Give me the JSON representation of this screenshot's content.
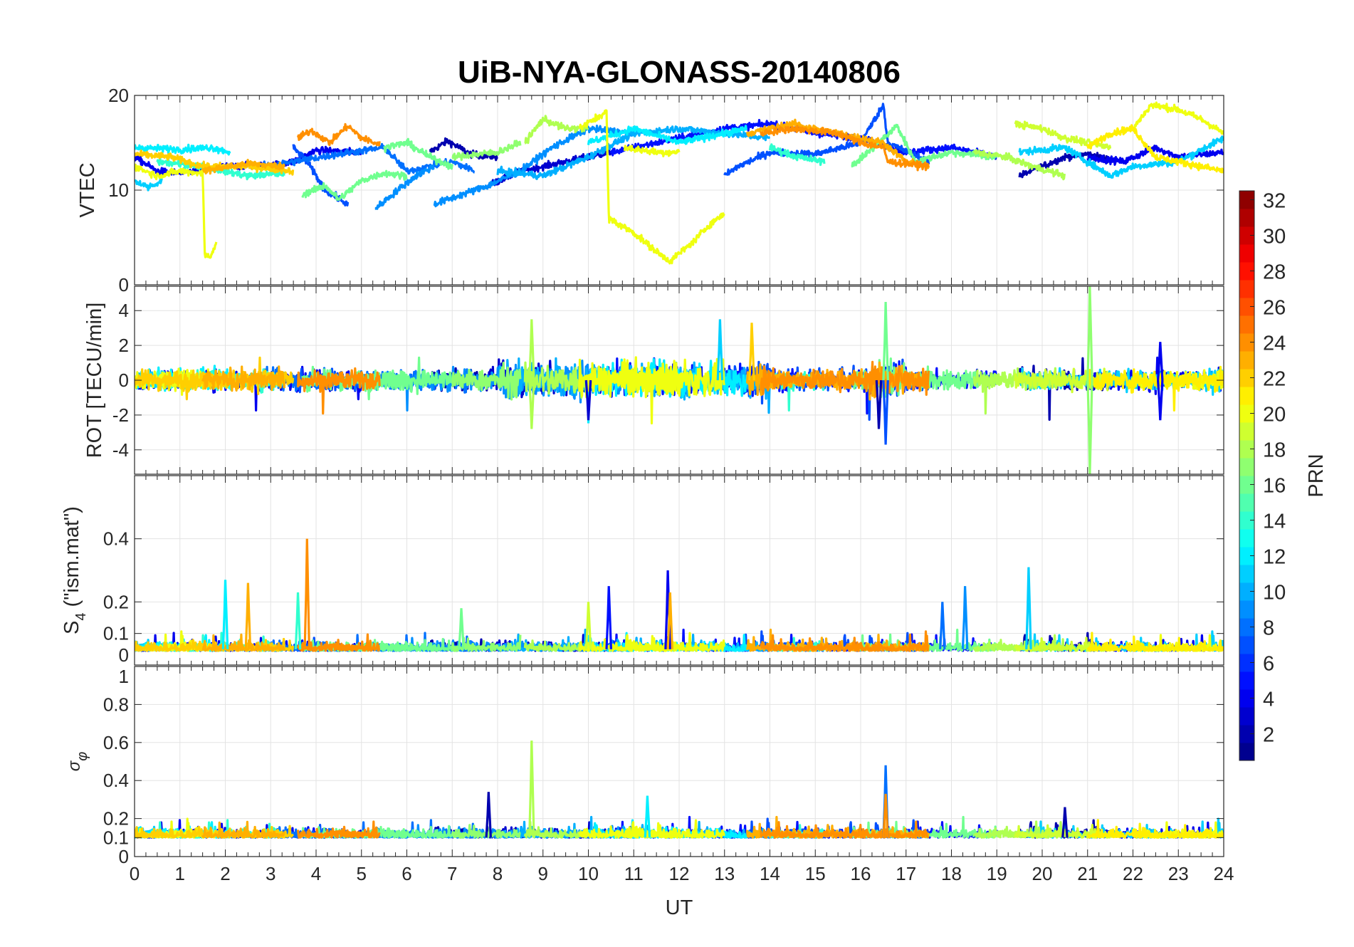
{
  "chart_data": [
    {
      "type": "line",
      "title": "UiB-NYA-GLONASS-20140806",
      "panel": "vtec",
      "ylabel": "VTEC",
      "ylim": [
        0,
        20
      ],
      "yticks": [
        "0",
        "10",
        "20"
      ],
      "yticks_values": [
        0,
        10,
        20
      ],
      "grid": true
    },
    {
      "type": "line",
      "panel": "rot",
      "ylabel": "ROT [TECU/min]",
      "ylim": [
        -5.4,
        5.4
      ],
      "yticks": [
        "-4",
        "-2",
        "0",
        "2",
        "4"
      ],
      "yticks_values": [
        -4,
        -2,
        0,
        2,
        4
      ],
      "grid": true
    },
    {
      "type": "line",
      "panel": "s4",
      "ylabel": "S4 (\"ism.mat\")",
      "ylabel_main": "S",
      "ylabel_sub": "4",
      "ylabel_rest": " (\"ism.mat\")",
      "ylim": [
        0,
        0.6
      ],
      "yticks": [
        "0",
        "0.1",
        "0.2",
        "0.4"
      ],
      "yticks_values": [
        0,
        0.1,
        0.2,
        0.4
      ],
      "grid": true
    },
    {
      "type": "line",
      "panel": "sigma",
      "ylabel": "σφ",
      "ylabel_main": "σ",
      "ylabel_sub": "φ",
      "ylim": [
        0,
        1
      ],
      "yticks": [
        "0",
        "0.1",
        "0.2",
        "0.4",
        "0.6",
        "0.8",
        "1"
      ],
      "yticks_values": [
        0,
        0.1,
        0.2,
        0.4,
        0.6,
        0.8,
        1
      ],
      "xlabel": "UT",
      "xlim": [
        0,
        24
      ],
      "xticks": [
        "0",
        "1",
        "2",
        "3",
        "4",
        "5",
        "6",
        "7",
        "8",
        "9",
        "10",
        "11",
        "12",
        "13",
        "14",
        "15",
        "16",
        "17",
        "18",
        "19",
        "20",
        "21",
        "22",
        "23",
        "24"
      ],
      "grid": true
    }
  ],
  "colorbar": {
    "label": "PRN",
    "range": [
      1,
      32
    ],
    "ticks": [
      "2",
      "4",
      "6",
      "8",
      "10",
      "12",
      "14",
      "16",
      "18",
      "20",
      "22",
      "24",
      "26",
      "28",
      "30",
      "32"
    ],
    "ticks_values": [
      2,
      4,
      6,
      8,
      10,
      12,
      14,
      16,
      18,
      20,
      22,
      24,
      26,
      28,
      30,
      32
    ],
    "colormap": "jet"
  },
  "series": [
    {
      "prn": 2,
      "vtec": [
        [
          6.5,
          14
        ],
        [
          6.9,
          15.2
        ],
        [
          7.4,
          13.8
        ],
        [
          8,
          13.5
        ]
      ]
    },
    {
      "prn": 2,
      "vtec": [
        [
          19.5,
          11.5
        ],
        [
          20,
          12.5
        ],
        [
          20.5,
          13.5
        ],
        [
          21,
          13.8
        ],
        [
          21.5,
          13.2
        ]
      ]
    },
    {
      "prn": 3,
      "vtec": [
        [
          7.8,
          10.5
        ],
        [
          8.5,
          12
        ],
        [
          9.3,
          12.8
        ],
        [
          10,
          13.5
        ],
        [
          10.5,
          14
        ]
      ]
    },
    {
      "prn": 4,
      "vtec": [
        [
          0,
          13.5
        ],
        [
          0.5,
          12
        ],
        [
          1,
          11.8
        ],
        [
          2,
          12.5
        ],
        [
          3,
          12.6
        ],
        [
          3.5,
          13
        ],
        [
          4,
          14.2
        ],
        [
          5,
          14
        ]
      ]
    },
    {
      "prn": 4,
      "vtec": [
        [
          21,
          13.5
        ],
        [
          21.8,
          13
        ],
        [
          22.5,
          14.5
        ],
        [
          23,
          13.5
        ],
        [
          24,
          14
        ]
      ]
    },
    {
      "prn": 5,
      "vtec": [
        [
          10.5,
          14
        ],
        [
          11,
          14.5
        ],
        [
          12,
          15.5
        ],
        [
          13,
          16.5
        ],
        [
          14,
          17
        ],
        [
          15,
          16
        ],
        [
          16,
          15.5
        ],
        [
          17,
          14
        ],
        [
          18,
          14.5
        ],
        [
          19,
          13.5
        ]
      ]
    },
    {
      "prn": 7,
      "vtec": [
        [
          3.5,
          14.5
        ],
        [
          3.8,
          13
        ],
        [
          4.2,
          10
        ],
        [
          4.7,
          8.5
        ]
      ]
    },
    {
      "prn": 7,
      "vtec": [
        [
          13,
          11.5
        ],
        [
          13.3,
          12.5
        ],
        [
          14,
          14
        ],
        [
          15,
          13.8
        ],
        [
          16,
          15
        ],
        [
          16.5,
          19
        ],
        [
          16.6,
          15
        ],
        [
          17.5,
          13
        ]
      ]
    },
    {
      "prn": 8,
      "vtec": [
        [
          2.8,
          12.5
        ],
        [
          3.5,
          13
        ],
        [
          4.5,
          13.8
        ],
        [
          5.5,
          14.5
        ],
        [
          6,
          12
        ],
        [
          7,
          13
        ],
        [
          7.5,
          12
        ]
      ]
    },
    {
      "prn": 9,
      "vtec": [
        [
          5.3,
          8
        ],
        [
          5.8,
          10
        ],
        [
          6.2,
          11.5
        ],
        [
          6.6,
          12.5
        ]
      ]
    },
    {
      "prn": 9,
      "vtec": [
        [
          6.6,
          8.5
        ],
        [
          7.2,
          9.5
        ],
        [
          7.8,
          10.5
        ],
        [
          8.5,
          12
        ],
        [
          9.2,
          14.5
        ],
        [
          10,
          16.5
        ],
        [
          11,
          16
        ]
      ]
    },
    {
      "prn": 10,
      "vtec": [
        [
          8,
          12
        ],
        [
          9,
          11.5
        ],
        [
          10,
          13.5
        ],
        [
          11,
          16
        ],
        [
          12,
          16.5
        ],
        [
          13,
          16
        ],
        [
          14,
          15.5
        ]
      ]
    },
    {
      "prn": 11,
      "vtec": [
        [
          0,
          11
        ],
        [
          0.3,
          10.3
        ],
        [
          0.6,
          11
        ]
      ]
    },
    {
      "prn": 11,
      "vtec": [
        [
          19.5,
          14
        ],
        [
          20.5,
          14.5
        ],
        [
          21,
          13
        ],
        [
          21.5,
          11.5
        ],
        [
          22,
          12.5
        ],
        [
          23,
          13
        ],
        [
          24,
          15.5
        ]
      ]
    },
    {
      "prn": 12,
      "vtec": [
        [
          0,
          14.5
        ],
        [
          1,
          14.3
        ],
        [
          1.7,
          14.5
        ],
        [
          2.1,
          14
        ]
      ]
    },
    {
      "prn": 12,
      "vtec": [
        [
          10,
          15
        ],
        [
          11,
          16.5
        ],
        [
          12,
          15
        ],
        [
          13,
          16
        ],
        [
          13.5,
          16.5
        ]
      ]
    },
    {
      "prn": 14,
      "vtec": [
        [
          0.5,
          13
        ],
        [
          1.5,
          12.5
        ],
        [
          2.5,
          11.5
        ],
        [
          3.3,
          11.8
        ]
      ]
    },
    {
      "prn": 14,
      "vtec": [
        [
          14,
          14.5
        ],
        [
          14.6,
          13.5
        ],
        [
          15.2,
          13
        ]
      ]
    },
    {
      "prn": 16,
      "vtec": [
        [
          3.7,
          9.5
        ],
        [
          4.2,
          10.5
        ],
        [
          4.5,
          9
        ],
        [
          5,
          11
        ],
        [
          5.5,
          11.8
        ],
        [
          6,
          11.5
        ]
      ]
    },
    {
      "prn": 16,
      "vtec": [
        [
          5.5,
          14.5
        ],
        [
          6,
          15
        ],
        [
          6.5,
          13.5
        ],
        [
          7,
          12.5
        ]
      ]
    },
    {
      "prn": 16,
      "vtec": [
        [
          15.8,
          12.5
        ],
        [
          16.4,
          15
        ],
        [
          16.8,
          16.8
        ],
        [
          17.2,
          13
        ],
        [
          18,
          14
        ],
        [
          19,
          13.5
        ]
      ]
    },
    {
      "prn": 17,
      "vtec": [
        [
          7,
          13.5
        ],
        [
          8,
          14
        ],
        [
          8.5,
          15
        ]
      ]
    },
    {
      "prn": 18,
      "vtec": [
        [
          8.6,
          15
        ],
        [
          9,
          17.5
        ],
        [
          9.5,
          16.5
        ],
        [
          10,
          16.5
        ]
      ]
    },
    {
      "prn": 18,
      "vtec": [
        [
          18.5,
          14
        ],
        [
          19.2,
          13.5
        ],
        [
          19.8,
          12.5
        ],
        [
          20.5,
          11.5
        ]
      ]
    },
    {
      "prn": 19,
      "vtec": [
        [
          19.4,
          17
        ],
        [
          20,
          16.5
        ],
        [
          20.5,
          15.5
        ],
        [
          21,
          15
        ],
        [
          21.5,
          14.5
        ]
      ]
    },
    {
      "prn": 20,
      "vtec": [
        [
          0,
          12.5
        ],
        [
          0.5,
          11.5
        ],
        [
          1,
          12
        ],
        [
          1.5,
          11.8
        ],
        [
          1.55,
          3
        ],
        [
          1.7,
          3.2
        ],
        [
          1.8,
          4.5
        ]
      ]
    },
    {
      "prn": 20,
      "vtec": [
        [
          9.8,
          16.5
        ],
        [
          10.4,
          18.3
        ],
        [
          10.45,
          7
        ],
        [
          11,
          5.5
        ],
        [
          11.5,
          3.5
        ],
        [
          11.8,
          2.5
        ],
        [
          12.3,
          4.5
        ],
        [
          12.7,
          6.5
        ],
        [
          13,
          7.5
        ]
      ]
    },
    {
      "prn": 20,
      "vtec": [
        [
          10.8,
          14.5
        ],
        [
          11.5,
          14
        ],
        [
          12,
          14
        ]
      ]
    },
    {
      "prn": 20,
      "vtec": [
        [
          22,
          16.5
        ],
        [
          22.4,
          19
        ],
        [
          23,
          18.5
        ],
        [
          23.5,
          17.5
        ],
        [
          24,
          16
        ]
      ]
    },
    {
      "prn": 21,
      "vtec": [
        [
          21,
          14.5
        ],
        [
          21.5,
          16
        ],
        [
          22,
          16.5
        ],
        [
          22.5,
          13.5
        ],
        [
          23,
          13
        ],
        [
          24,
          12
        ]
      ]
    },
    {
      "prn": 22,
      "vtec": [
        [
          0,
          13.8
        ],
        [
          0.8,
          13.5
        ],
        [
          1.5,
          12.5
        ],
        [
          2.5,
          12.5
        ],
        [
          3.5,
          12
        ]
      ]
    },
    {
      "prn": 23,
      "vtec": [
        [
          1.5,
          12
        ],
        [
          2.5,
          12.8
        ],
        [
          3.3,
          12.5
        ]
      ]
    },
    {
      "prn": 23,
      "vtec": [
        [
          13.5,
          16
        ],
        [
          14.5,
          17
        ],
        [
          15.5,
          16
        ],
        [
          16.5,
          15
        ],
        [
          17,
          13
        ],
        [
          17.5,
          12.5
        ]
      ]
    },
    {
      "prn": 24,
      "vtec": [
        [
          3.6,
          15.5
        ],
        [
          3.9,
          16.3
        ],
        [
          4.3,
          15
        ],
        [
          4.7,
          16.8
        ],
        [
          5,
          15.5
        ],
        [
          5.4,
          14.8
        ]
      ]
    },
    {
      "prn": 24,
      "vtec": [
        [
          13.8,
          16
        ],
        [
          14.5,
          16.5
        ],
        [
          15.5,
          16
        ],
        [
          16,
          15
        ],
        [
          16.5,
          14.5
        ],
        [
          16.6,
          13
        ],
        [
          17,
          12.8
        ],
        [
          17.5,
          12.5
        ]
      ]
    }
  ],
  "spikes": [
    {
      "panel": "rot",
      "prn": 18,
      "t": 8.75,
      "value": 3.5
    },
    {
      "panel": "rot",
      "prn": 18,
      "t": 8.75,
      "value": -2.8
    },
    {
      "panel": "rot",
      "prn": 11,
      "t": 12.9,
      "value": 3.5
    },
    {
      "panel": "rot",
      "prn": 22,
      "t": 13.6,
      "value": 3.3
    },
    {
      "panel": "rot",
      "prn": 7,
      "t": 16.55,
      "value": -3.7
    },
    {
      "panel": "rot",
      "prn": 16,
      "t": 16.55,
      "value": 4.5
    },
    {
      "panel": "rot",
      "prn": 2,
      "t": 16.4,
      "value": -2.8
    },
    {
      "panel": "rot",
      "prn": 17,
      "t": 21.05,
      "value": 5.4
    },
    {
      "panel": "rot",
      "prn": 17,
      "t": 21.05,
      "value": -5.4
    },
    {
      "panel": "rot",
      "prn": 4,
      "t": 22.6,
      "value": 2.2
    },
    {
      "panel": "rot",
      "prn": 4,
      "t": 22.6,
      "value": -2.3
    },
    {
      "panel": "rot",
      "prn": 3,
      "t": 10,
      "value": -2.3
    },
    {
      "panel": "s4",
      "prn": 12,
      "t": 2.0,
      "value": 0.27
    },
    {
      "panel": "s4",
      "prn": 23,
      "t": 2.5,
      "value": 0.26
    },
    {
      "panel": "s4",
      "prn": 24,
      "t": 3.8,
      "value": 0.4
    },
    {
      "panel": "s4",
      "prn": 14,
      "t": 3.6,
      "value": 0.23
    },
    {
      "panel": "s4",
      "prn": 16,
      "t": 7.2,
      "value": 0.18
    },
    {
      "panel": "s4",
      "prn": 19,
      "t": 10,
      "value": 0.2
    },
    {
      "panel": "s4",
      "prn": 5,
      "t": 10.45,
      "value": 0.25
    },
    {
      "panel": "s4",
      "prn": 4,
      "t": 11.75,
      "value": 0.3
    },
    {
      "panel": "s4",
      "prn": 23,
      "t": 11.8,
      "value": 0.23
    },
    {
      "panel": "s4",
      "prn": 9,
      "t": 18.3,
      "value": 0.25
    },
    {
      "panel": "s4",
      "prn": 8,
      "t": 17.8,
      "value": 0.2
    },
    {
      "panel": "s4",
      "prn": 11,
      "t": 19.7,
      "value": 0.31
    },
    {
      "panel": "sigma",
      "prn": 18,
      "t": 8.75,
      "value": 0.61
    },
    {
      "panel": "sigma",
      "prn": 8,
      "t": 16.55,
      "value": 0.48
    },
    {
      "panel": "sigma",
      "prn": 24,
      "t": 16.55,
      "value": 0.33
    },
    {
      "panel": "sigma",
      "prn": 2,
      "t": 7.8,
      "value": 0.34
    },
    {
      "panel": "sigma",
      "prn": 12,
      "t": 11.3,
      "value": 0.32
    },
    {
      "panel": "sigma",
      "prn": 2,
      "t": 20.5,
      "value": 0.26
    }
  ]
}
